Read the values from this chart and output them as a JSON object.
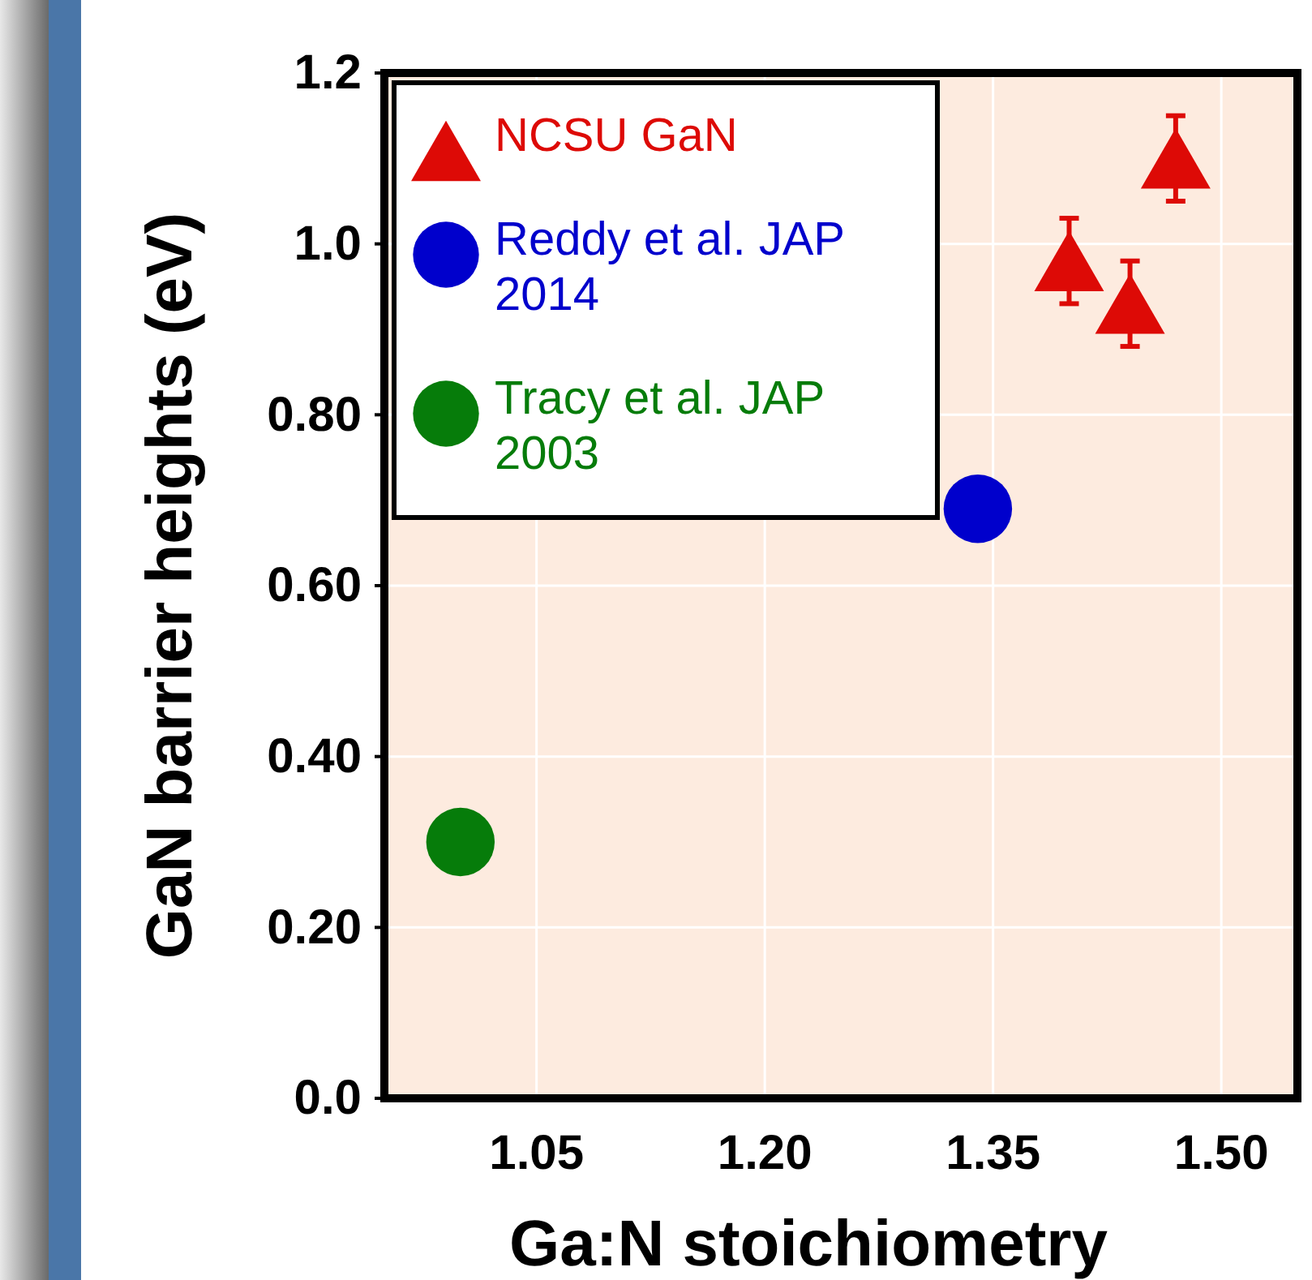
{
  "chart_data": {
    "type": "scatter",
    "xlabel": "Ga:N stoichiometry",
    "ylabel": "GaN barrier heights (eV)",
    "xlim": [
      0.95,
      1.55
    ],
    "xticks": [
      {
        "value": 1.05,
        "label": "1.05"
      },
      {
        "value": 1.2,
        "label": "1.20"
      },
      {
        "value": 1.35,
        "label": "1.35"
      },
      {
        "value": 1.5,
        "label": "1.50"
      }
    ],
    "ylim": [
      0,
      1.2
    ],
    "yticks": [
      {
        "value": 0,
        "label": "0.0"
      },
      {
        "value": 0.2,
        "label": "0.20"
      },
      {
        "value": 0.4,
        "label": "0.40"
      },
      {
        "value": 0.6,
        "label": "0.60"
      },
      {
        "value": 0.8,
        "label": "0.80"
      },
      {
        "value": 1,
        "label": "1.0"
      },
      {
        "value": 1.2,
        "label": "1.2"
      }
    ],
    "grid": true,
    "legend": "top left",
    "series": [
      {
        "name": "NCSU GaN",
        "color": "#dd0a06",
        "marker": "triangle",
        "x": [
          1.4,
          1.44,
          1.47
        ],
        "values": [
          0.98,
          0.93,
          1.1
        ],
        "errors": [
          0.05,
          0.05,
          0.05
        ]
      },
      {
        "name": "Reddy et al. JAP 2014",
        "color": "#0000cc",
        "marker": "circle",
        "x": [
          1.34
        ],
        "values": [
          0.69
        ]
      },
      {
        "name": "Tracy et al. JAP 2003",
        "color": "#067c0a",
        "marker": "circle",
        "x": [
          1.0
        ],
        "values": [
          0.3
        ]
      }
    ]
  }
}
